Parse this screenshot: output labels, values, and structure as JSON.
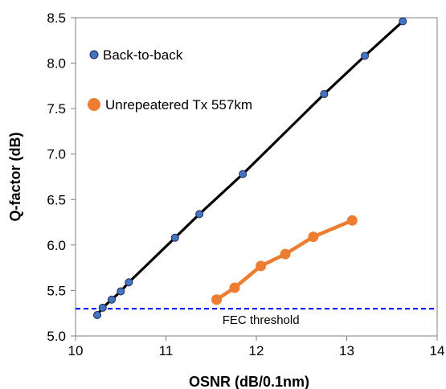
{
  "chart_data": {
    "type": "line",
    "title": "",
    "xlabel": "OSNR (dB/0.1nm)",
    "ylabel": "Q-factor (dB)",
    "xlim": [
      10,
      14
    ],
    "ylim": [
      5.0,
      8.5
    ],
    "xticks": [
      "10",
      "11",
      "12",
      "13",
      "14"
    ],
    "yticks": [
      "5.0",
      "5.5",
      "6.0",
      "6.5",
      "7.0",
      "7.5",
      "8.0",
      "8.5"
    ],
    "grid": false,
    "legend_position": "top-left",
    "series": [
      {
        "name": "Back-to-back",
        "line_color": "#000000",
        "marker_color": "#4472c4",
        "x": [
          10.24,
          10.3,
          10.4,
          10.5,
          10.59,
          11.1,
          11.37,
          11.85,
          12.75,
          13.2,
          13.62
        ],
        "y": [
          5.23,
          5.31,
          5.4,
          5.49,
          5.59,
          6.08,
          6.34,
          6.78,
          7.66,
          8.08,
          8.46
        ]
      },
      {
        "name": "Unrepeatered Tx 557km",
        "line_color": "#ed7d31",
        "marker_color": "#ed7d31",
        "x": [
          11.56,
          11.76,
          12.05,
          12.32,
          12.63,
          13.06
        ],
        "y": [
          5.4,
          5.53,
          5.77,
          5.9,
          6.09,
          6.27
        ]
      }
    ],
    "reference_lines": [
      {
        "label": "FEC threshold",
        "y": 5.3,
        "color": "#0000ff",
        "style": "dashed"
      }
    ]
  }
}
